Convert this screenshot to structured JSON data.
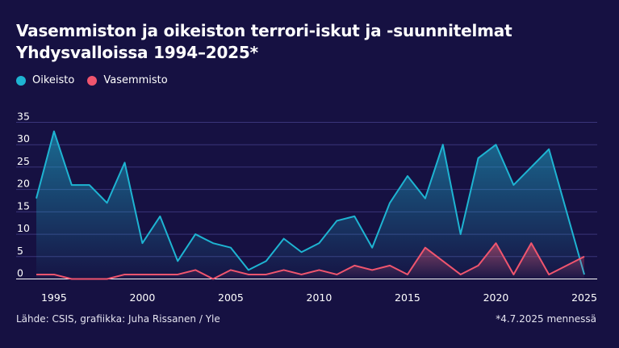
{
  "title_line1": "Vasemmiston ja oikeiston terrori-iskut ja -suunnitelmat",
  "title_line2": "Yhdysvalloissa 1994–2025*",
  "source": "Lähde: CSIS, grafiikka: Juha Rissanen / Yle",
  "note": "*4.7.2025 mennessä",
  "colors": {
    "background": "#161142",
    "right": "#1eb4d2",
    "left": "#f0556e",
    "grid": "#3a357a"
  },
  "chart_data": {
    "type": "area",
    "title": "Vasemmiston ja oikeiston terrori-iskut ja -suunnitelmat Yhdysvalloissa 1994–2025*",
    "x": [
      1994,
      1995,
      1996,
      1997,
      1998,
      1999,
      2000,
      2001,
      2002,
      2003,
      2004,
      2005,
      2006,
      2007,
      2008,
      2009,
      2010,
      2011,
      2012,
      2013,
      2014,
      2015,
      2016,
      2017,
      2018,
      2019,
      2020,
      2021,
      2022,
      2023,
      2024,
      2025
    ],
    "x_ticks": [
      "1995",
      "2000",
      "2005",
      "2010",
      "2015",
      "2020",
      "2025"
    ],
    "y_ticks": [
      "0",
      "5",
      "10",
      "15",
      "20",
      "25",
      "30",
      "35"
    ],
    "ylim": [
      0,
      35
    ],
    "grid": "horizontal",
    "legend_position": "top-left",
    "series": [
      {
        "name": "Oikeisto",
        "color": "#1eb4d2",
        "values": [
          18,
          33,
          21,
          21,
          17,
          26,
          8,
          14,
          4,
          10,
          8,
          7,
          2,
          4,
          9,
          6,
          8,
          13,
          14,
          7,
          17,
          23,
          18,
          30,
          10,
          27,
          30,
          21,
          25,
          29,
          15,
          1
        ]
      },
      {
        "name": "Vasemmisto",
        "color": "#f0556e",
        "values": [
          1,
          1,
          0,
          0,
          0,
          1,
          1,
          1,
          1,
          2,
          0,
          2,
          1,
          1,
          2,
          1,
          2,
          1,
          3,
          2,
          3,
          1,
          7,
          4,
          1,
          3,
          8,
          1,
          8,
          1,
          3,
          5
        ]
      }
    ]
  }
}
